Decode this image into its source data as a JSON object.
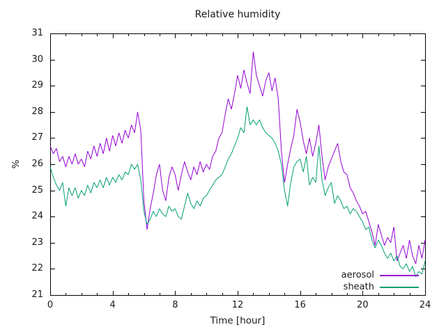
{
  "chart_data": {
    "type": "line",
    "title": "Relative humidity",
    "xlabel": "Time [hour]",
    "ylabel": "%",
    "xlim": [
      0,
      24
    ],
    "ylim": [
      21,
      31
    ],
    "grid": false,
    "legend_position": "inside bottom-right",
    "xtick_values": [
      0,
      4,
      8,
      12,
      16,
      20,
      24
    ],
    "xtick_labels": [
      "0",
      "4",
      "8",
      "12",
      "16",
      "20",
      "24"
    ],
    "xtick_minor_step": 1,
    "ytick_values": [
      21,
      22,
      23,
      24,
      25,
      26,
      27,
      28,
      29,
      30,
      31
    ],
    "ytick_labels": [
      "21",
      "22",
      "23",
      "24",
      "25",
      "26",
      "27",
      "28",
      "29",
      "30",
      "31"
    ],
    "x_start": 0,
    "x_step": 0.2,
    "series": [
      {
        "name": "aerosol",
        "color": "#9400d3",
        "values": [
          26.7,
          26.4,
          26.6,
          26.1,
          26.3,
          25.9,
          26.3,
          26.0,
          26.4,
          26.0,
          26.2,
          25.9,
          26.5,
          26.2,
          26.7,
          26.3,
          26.8,
          26.4,
          27.0,
          26.5,
          27.1,
          26.7,
          27.2,
          26.8,
          27.3,
          27.0,
          27.5,
          27.2,
          28.0,
          27.3,
          24.6,
          23.5,
          24.3,
          24.9,
          25.6,
          26.0,
          25.0,
          24.6,
          25.5,
          25.9,
          25.6,
          25.0,
          25.6,
          26.1,
          25.7,
          25.4,
          25.9,
          25.6,
          26.1,
          25.7,
          26.0,
          25.8,
          26.3,
          26.5,
          27.0,
          27.2,
          27.9,
          28.5,
          28.1,
          28.7,
          29.4,
          28.9,
          29.6,
          29.1,
          28.7,
          30.3,
          29.4,
          29.0,
          28.6,
          29.2,
          29.5,
          28.8,
          29.3,
          28.5,
          26.5,
          25.3,
          26.0,
          26.6,
          27.1,
          28.1,
          27.6,
          26.9,
          26.4,
          27.0,
          26.3,
          26.8,
          27.5,
          26.3,
          25.4,
          25.9,
          26.2,
          26.5,
          26.8,
          26.1,
          25.7,
          25.6,
          25.1,
          24.9,
          24.6,
          24.4,
          24.1,
          24.2,
          23.8,
          23.4,
          22.9,
          23.7,
          23.3,
          22.9,
          23.2,
          23.0,
          23.6,
          22.3,
          22.6,
          22.9,
          22.4,
          23.1,
          22.5,
          22.2,
          22.9,
          22.4,
          23.1
        ]
      },
      {
        "name": "sheath",
        "color": "#009e73",
        "values": [
          25.9,
          25.5,
          25.2,
          25.0,
          25.3,
          24.4,
          25.1,
          24.8,
          25.1,
          24.7,
          25.0,
          24.8,
          25.2,
          24.9,
          25.3,
          25.1,
          25.4,
          25.1,
          25.5,
          25.2,
          25.5,
          25.3,
          25.6,
          25.4,
          25.7,
          25.6,
          26.0,
          25.8,
          26.0,
          25.4,
          24.2,
          23.7,
          23.9,
          24.2,
          24.0,
          24.3,
          24.1,
          24.0,
          24.4,
          24.2,
          24.3,
          24.0,
          23.9,
          24.4,
          24.9,
          24.5,
          24.3,
          24.6,
          24.4,
          24.7,
          24.8,
          25.0,
          25.2,
          25.4,
          25.5,
          25.6,
          25.9,
          26.2,
          26.4,
          26.7,
          27.0,
          27.4,
          27.2,
          28.2,
          27.5,
          27.7,
          27.5,
          27.7,
          27.4,
          27.2,
          27.1,
          27.0,
          26.8,
          26.5,
          26.0,
          25.0,
          24.4,
          25.3,
          25.9,
          26.1,
          26.2,
          25.7,
          26.3,
          25.2,
          25.5,
          25.3,
          26.7,
          25.4,
          24.8,
          25.1,
          25.3,
          24.5,
          24.8,
          24.6,
          24.3,
          24.4,
          24.1,
          24.3,
          24.2,
          24.0,
          23.8,
          23.5,
          23.6,
          23.1,
          22.8,
          23.1,
          22.9,
          22.6,
          22.4,
          22.6,
          22.3,
          22.5,
          22.1,
          22.0,
          22.2,
          21.9,
          22.1,
          21.7,
          21.9,
          21.8,
          22.3
        ]
      }
    ]
  },
  "axis": {
    "border_color": "#000000",
    "tick_color": "#000000"
  }
}
